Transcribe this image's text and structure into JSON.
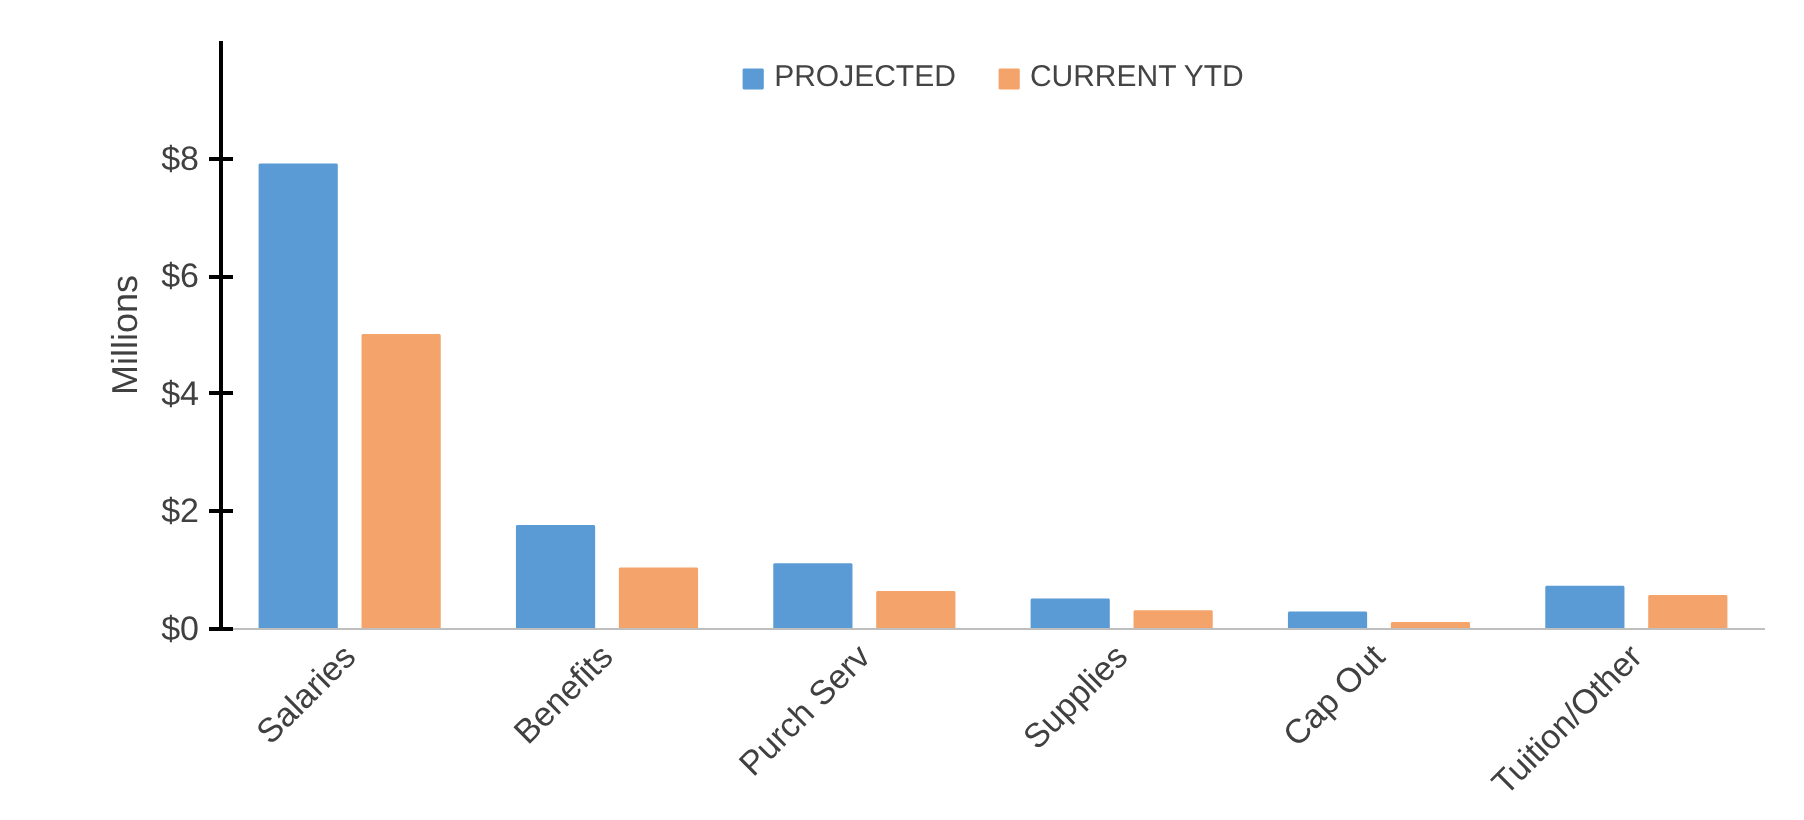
{
  "chart_data": {
    "type": "bar",
    "ylabel": "Millions",
    "categories": [
      "Salaries",
      "Benefits",
      "Purch Serv",
      "Supplies",
      "Cap Out",
      "Tuition/Other"
    ],
    "series": [
      {
        "name": "PROJECTED",
        "color": "#5b9bd5",
        "values": [
          7.9,
          1.75,
          1.1,
          0.5,
          0.28,
          0.72
        ]
      },
      {
        "name": "CURRENT YTD",
        "color": "#f4a46a",
        "values": [
          5.0,
          1.03,
          0.63,
          0.3,
          0.1,
          0.56
        ]
      }
    ],
    "ylim": [
      0,
      10
    ],
    "yticks": [
      {
        "value": 0,
        "label": "$0"
      },
      {
        "value": 2,
        "label": "$2"
      },
      {
        "value": 4,
        "label": "$4"
      },
      {
        "value": 6,
        "label": "$6"
      },
      {
        "value": 8,
        "label": "$8"
      }
    ],
    "grid": false,
    "legend": "top"
  }
}
